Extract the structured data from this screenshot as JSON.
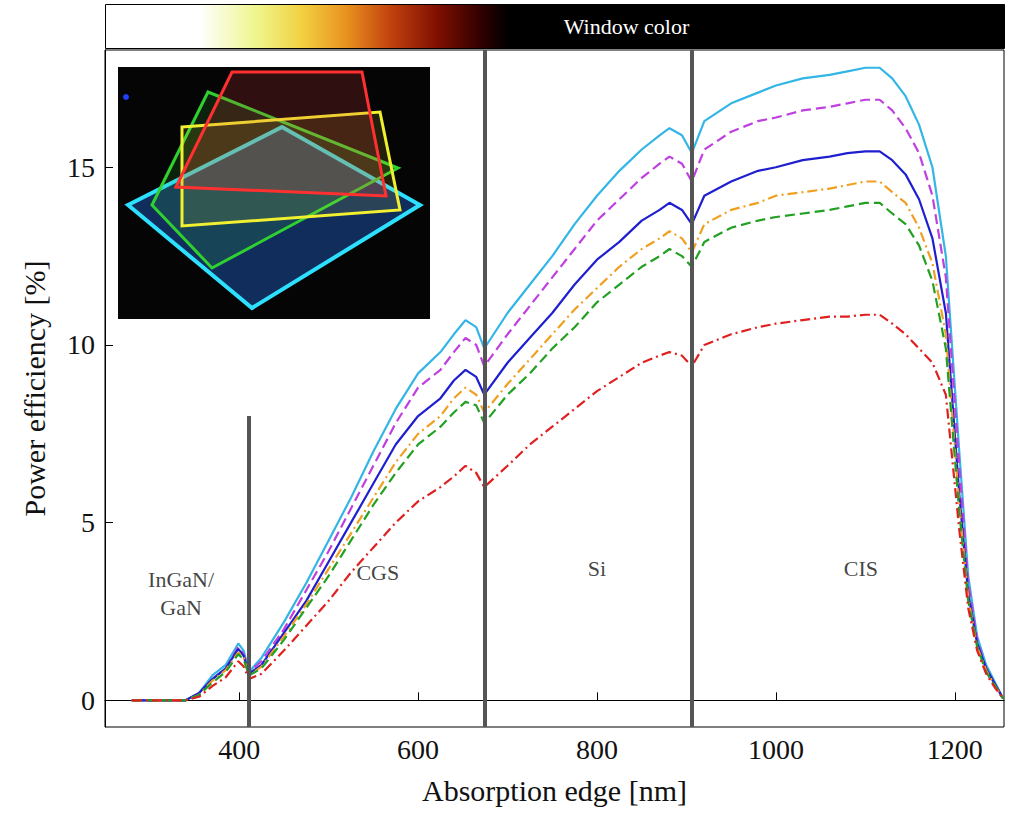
{
  "chart_data": {
    "type": "line",
    "x_label": "Absorption edge [nm]",
    "y_label": "Power efficiency [%]",
    "xlim": [
      250,
      1255
    ],
    "ylim": [
      -0.75,
      18.3
    ],
    "xticks": [
      400,
      600,
      800,
      1000,
      1200
    ],
    "yticks": [
      0,
      5,
      10,
      15
    ],
    "grid": false,
    "x": [
      280,
      300,
      320,
      340,
      355,
      370,
      385,
      399,
      405,
      411,
      425,
      450,
      475,
      500,
      525,
      550,
      575,
      600,
      625,
      640,
      653,
      665,
      674,
      700,
      725,
      750,
      775,
      800,
      825,
      850,
      870,
      881,
      895,
      906,
      920,
      950,
      980,
      1000,
      1030,
      1060,
      1080,
      1100,
      1116,
      1130,
      1145,
      1160,
      1175,
      1190,
      1205,
      1215,
      1225,
      1235,
      1245,
      1254
    ],
    "series": [
      {
        "color": "#33b5e5",
        "line_style": "solid",
        "values": [
          0,
          0,
          0,
          0,
          0.2,
          0.7,
          1.0,
          1.6,
          1.4,
          0.8,
          1.2,
          2.2,
          3.3,
          4.5,
          5.7,
          7.0,
          8.2,
          9.2,
          9.8,
          10.3,
          10.7,
          10.5,
          9.9,
          10.9,
          11.7,
          12.5,
          13.4,
          14.2,
          14.9,
          15.5,
          15.9,
          16.1,
          15.9,
          15.4,
          16.3,
          16.8,
          17.1,
          17.3,
          17.5,
          17.6,
          17.7,
          17.8,
          17.8,
          17.5,
          17.0,
          16.2,
          15.0,
          12.5,
          7.0,
          3.5,
          1.8,
          1.0,
          0.5,
          0.05
        ]
      },
      {
        "color": "#bf3fdf",
        "line_style": "dashed",
        "values": [
          0,
          0,
          0,
          0,
          0.2,
          0.6,
          0.9,
          1.5,
          1.3,
          0.8,
          1.1,
          2.0,
          3.1,
          4.2,
          5.4,
          6.6,
          7.8,
          8.8,
          9.3,
          9.8,
          10.2,
          10.0,
          9.4,
          10.3,
          11.1,
          11.9,
          12.7,
          13.5,
          14.1,
          14.7,
          15.1,
          15.3,
          15.1,
          14.6,
          15.5,
          16.0,
          16.3,
          16.4,
          16.6,
          16.7,
          16.8,
          16.9,
          16.9,
          16.6,
          16.1,
          15.4,
          14.2,
          11.9,
          6.6,
          3.3,
          1.7,
          0.9,
          0.45,
          0.05
        ]
      },
      {
        "color": "#1f1fcf",
        "line_style": "solid",
        "values": [
          0,
          0,
          0,
          0,
          0.2,
          0.6,
          0.9,
          1.45,
          1.25,
          0.75,
          1.0,
          1.9,
          2.8,
          3.9,
          5.0,
          6.1,
          7.2,
          8.0,
          8.5,
          9.0,
          9.3,
          9.1,
          8.6,
          9.5,
          10.2,
          10.9,
          11.7,
          12.4,
          12.9,
          13.5,
          13.8,
          14.0,
          13.8,
          13.4,
          14.2,
          14.6,
          14.9,
          15.0,
          15.2,
          15.3,
          15.4,
          15.45,
          15.45,
          15.2,
          14.8,
          14.1,
          13.0,
          10.9,
          5.8,
          3.0,
          1.6,
          0.9,
          0.45,
          0.05
        ]
      },
      {
        "color": "#f0a020",
        "line_style": "dashdot",
        "values": [
          0,
          0,
          0,
          0,
          0.15,
          0.55,
          0.85,
          1.35,
          1.2,
          0.7,
          0.95,
          1.8,
          2.7,
          3.7,
          4.7,
          5.7,
          6.7,
          7.5,
          8.0,
          8.5,
          8.8,
          8.6,
          8.1,
          8.9,
          9.6,
          10.3,
          11.0,
          11.6,
          12.2,
          12.7,
          13.0,
          13.2,
          13.0,
          12.6,
          13.4,
          13.8,
          14.0,
          14.2,
          14.3,
          14.4,
          14.5,
          14.6,
          14.6,
          14.3,
          14.0,
          13.3,
          12.3,
          10.3,
          5.5,
          2.9,
          1.5,
          0.85,
          0.4,
          0.05
        ]
      },
      {
        "color": "#22a022",
        "line_style": "dashed",
        "values": [
          0,
          0,
          0,
          0,
          0.15,
          0.5,
          0.8,
          1.3,
          1.15,
          0.7,
          0.9,
          1.7,
          2.6,
          3.5,
          4.5,
          5.5,
          6.4,
          7.2,
          7.7,
          8.1,
          8.4,
          8.3,
          7.8,
          8.6,
          9.2,
          9.9,
          10.5,
          11.2,
          11.7,
          12.2,
          12.5,
          12.7,
          12.5,
          12.2,
          12.9,
          13.3,
          13.5,
          13.6,
          13.7,
          13.8,
          13.9,
          14.0,
          14.0,
          13.7,
          13.4,
          12.8,
          11.8,
          9.9,
          5.3,
          2.8,
          1.5,
          0.8,
          0.4,
          0.05
        ]
      },
      {
        "color": "#e02020",
        "line_style": "dashdot",
        "values": [
          0,
          0,
          0,
          0,
          0.1,
          0.4,
          0.65,
          1.1,
          0.95,
          0.6,
          0.75,
          1.4,
          2.1,
          2.8,
          3.6,
          4.3,
          5.0,
          5.6,
          6.0,
          6.3,
          6.6,
          6.4,
          6.0,
          6.6,
          7.2,
          7.7,
          8.2,
          8.7,
          9.1,
          9.5,
          9.7,
          9.8,
          9.7,
          9.4,
          10.0,
          10.3,
          10.5,
          10.6,
          10.7,
          10.8,
          10.8,
          10.85,
          10.85,
          10.6,
          10.3,
          9.9,
          9.5,
          8.6,
          4.8,
          2.6,
          1.4,
          0.75,
          0.35,
          0.05
        ]
      }
    ],
    "dividers": [
      {
        "x": 411,
        "ymax": 8.0
      },
      {
        "x": 674,
        "ymax": 18.3
      },
      {
        "x": 906,
        "ymax": 18.3
      }
    ],
    "annotations": [
      {
        "text": "InGaN/\nGaN",
        "x": 335,
        "y": 3.0
      },
      {
        "text": "CGS",
        "x": 555,
        "y": 3.6
      },
      {
        "text": "Si",
        "x": 800,
        "y": 3.7
      },
      {
        "text": "CIS",
        "x": 1095,
        "y": 3.7
      }
    ],
    "window_color": {
      "label": "Window color",
      "label_x": 833,
      "stops": [
        {
          "x": 355,
          "color": "#ffffff"
        },
        {
          "x": 420,
          "color": "#eef58a"
        },
        {
          "x": 470,
          "color": "#f2d040"
        },
        {
          "x": 520,
          "color": "#e8901e"
        },
        {
          "x": 570,
          "color": "#c0400e"
        },
        {
          "x": 620,
          "color": "#801000"
        },
        {
          "x": 670,
          "color": "#300000"
        },
        {
          "x": 700,
          "color": "#000000"
        }
      ]
    }
  }
}
